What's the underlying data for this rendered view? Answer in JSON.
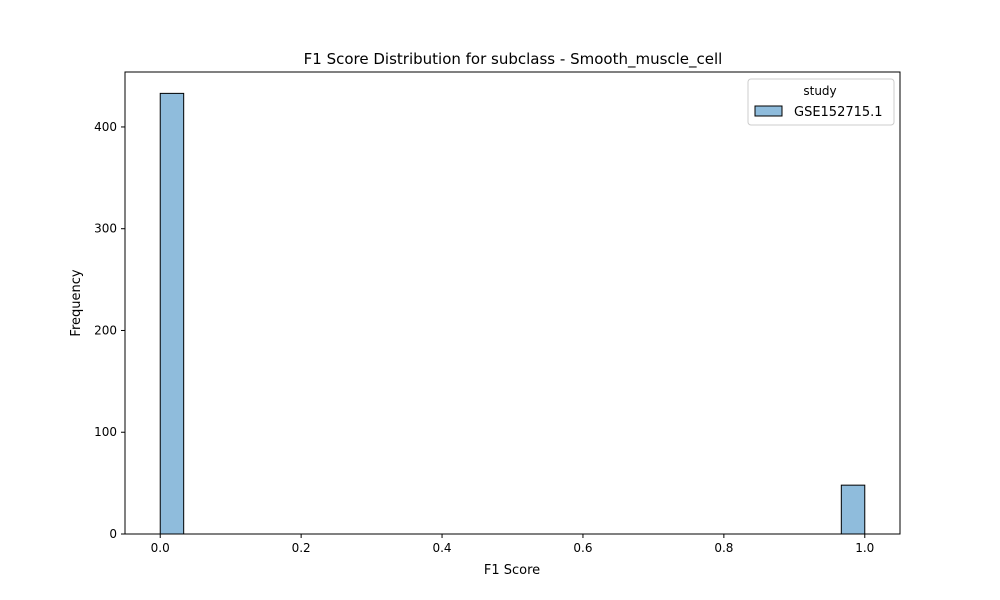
{
  "chart_data": {
    "type": "bar",
    "title": "F1 Score Distribution for subclass - Smooth_muscle_cell",
    "xlabel": "F1 Score",
    "ylabel": "Frequency",
    "xlim": [
      -0.05,
      1.05
    ],
    "ylim": [
      0,
      454
    ],
    "xticks": [
      0.0,
      0.2,
      0.4,
      0.6,
      0.8,
      1.0
    ],
    "xtick_labels": [
      "0.0",
      "0.2",
      "0.4",
      "0.6",
      "0.8",
      "1.0"
    ],
    "yticks": [
      0,
      100,
      200,
      300,
      400
    ],
    "ytick_labels": [
      "0",
      "100",
      "200",
      "300",
      "400"
    ],
    "bin_width": 0.0333,
    "bins": [
      {
        "start": 0.0,
        "end": 0.0333,
        "count": 433
      },
      {
        "start": 0.9667,
        "end": 1.0,
        "count": 48
      }
    ],
    "legend": {
      "title": "study",
      "placement": "top-right",
      "entries": [
        {
          "label": "GSE152715.1",
          "color": "#8fbcdc"
        }
      ]
    },
    "series": [
      {
        "name": "GSE152715.1",
        "color": "#8fbcdc",
        "edgecolor": "#000000"
      }
    ],
    "grid": false
  }
}
